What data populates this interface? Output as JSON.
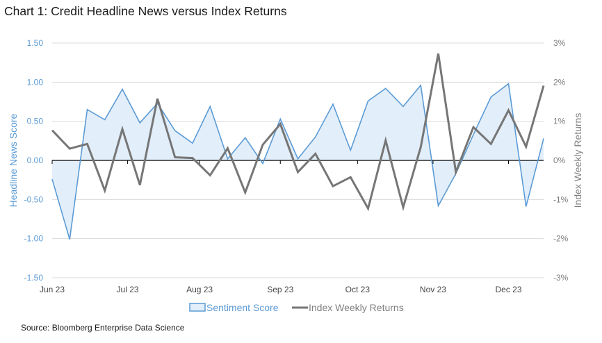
{
  "title": "Chart 1: Credit Headline News versus Index Returns",
  "source": "Source: Bloomberg Enterprise Data Science",
  "colors": {
    "sentiment": "#5b9bd5",
    "sentiment_fill": "#e2eef9",
    "returns": "#767676",
    "grid": "#d9d9d9"
  },
  "chart_data": {
    "type": "line",
    "x_tick_labels": [
      "Jun 23",
      "Jul 23",
      "Aug 23",
      "Sep 23",
      "Oct 23",
      "Nov 23",
      "Dec 23"
    ],
    "x_tick_week_index": [
      0,
      4.3,
      8.4,
      13,
      17.4,
      21.7,
      26
    ],
    "left_axis": {
      "label": "Headline News Score",
      "range": [
        -1.5,
        1.5
      ],
      "tick_labels": [
        "1.50",
        "1.00",
        "0.50",
        "0.00",
        "-0.50",
        "-1.00",
        "-1.50"
      ]
    },
    "right_axis": {
      "label": "Index Weekly Returns",
      "range": [
        -3,
        3
      ],
      "unit": "%",
      "tick_labels": [
        "3%",
        "2%",
        "1%",
        "0%",
        "-1%",
        "-2%",
        "-3%"
      ]
    },
    "grid": true,
    "legend_position": "bottom",
    "series": [
      {
        "name": "Sentiment Score",
        "axis": "left",
        "style": "line-area",
        "values": [
          -0.24,
          -1.01,
          0.65,
          0.52,
          0.91,
          0.48,
          0.73,
          0.38,
          0.22,
          0.69,
          0.02,
          0.29,
          -0.04,
          0.53,
          0.02,
          0.3,
          0.72,
          0.13,
          0.76,
          0.92,
          0.69,
          0.96,
          -0.58,
          -0.17,
          0.33,
          0.81,
          0.98,
          -0.59,
          0.28
        ]
      },
      {
        "name": "Index Weekly Returns",
        "axis": "right",
        "style": "line",
        "values": [
          0.77,
          0.3,
          0.42,
          -0.77,
          0.8,
          -0.63,
          1.58,
          0.08,
          0.06,
          -0.38,
          0.31,
          -0.82,
          0.4,
          0.93,
          -0.3,
          0.17,
          -0.66,
          -0.43,
          -1.23,
          0.51,
          -1.2,
          0.34,
          2.73,
          -0.3,
          0.85,
          0.42,
          1.28,
          0.35,
          1.91
        ]
      }
    ]
  }
}
